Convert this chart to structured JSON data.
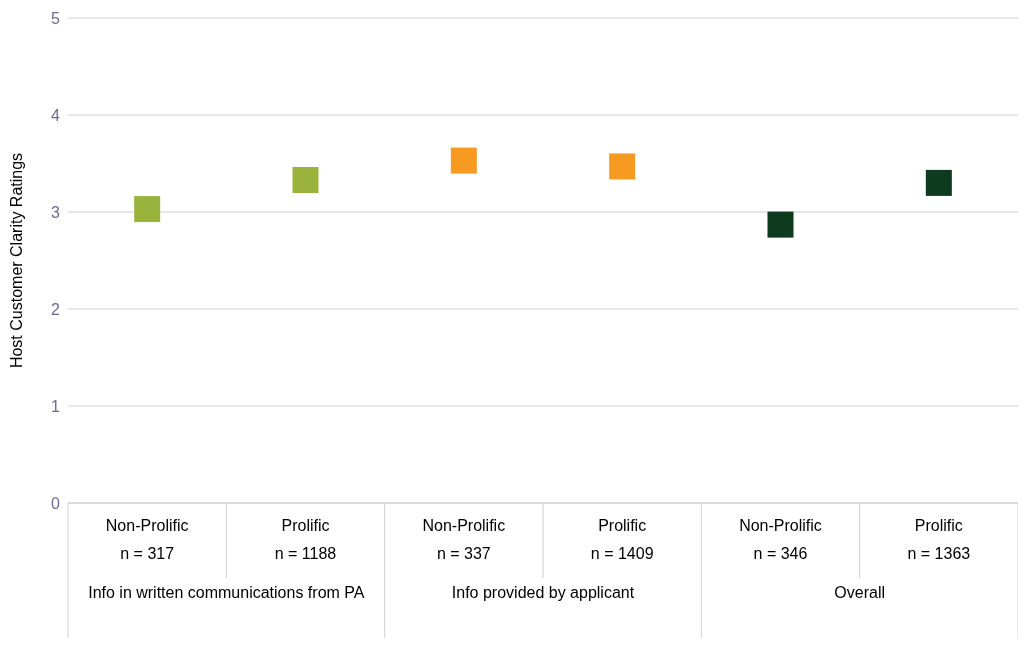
{
  "chart_data": {
    "type": "scatter",
    "ylabel": "Host Customer Clarity Ratings",
    "categories": [
      "Non-Prolific\nn = 317",
      "Prolific\nn = 1188",
      "Non-Prolific\nn = 337",
      "Prolific\nn = 1409",
      "Non-Prolific\nn = 346",
      "Prolific\nn = 1363"
    ],
    "values": [
      3.03,
      3.33,
      3.53,
      3.47,
      2.87,
      3.3
    ],
    "colors": [
      "#99b33c",
      "#99b33c",
      "#f79a22",
      "#f79a22",
      "#0e3a1e",
      "#0e3a1e"
    ],
    "ylim": [
      0,
      5
    ],
    "yticks": [
      0,
      1,
      2,
      3,
      4,
      5
    ],
    "grid": "y",
    "marker": "square",
    "annotations": [
      "Info in written communications from PA",
      "Info provided by applicant",
      "Overall"
    ]
  }
}
